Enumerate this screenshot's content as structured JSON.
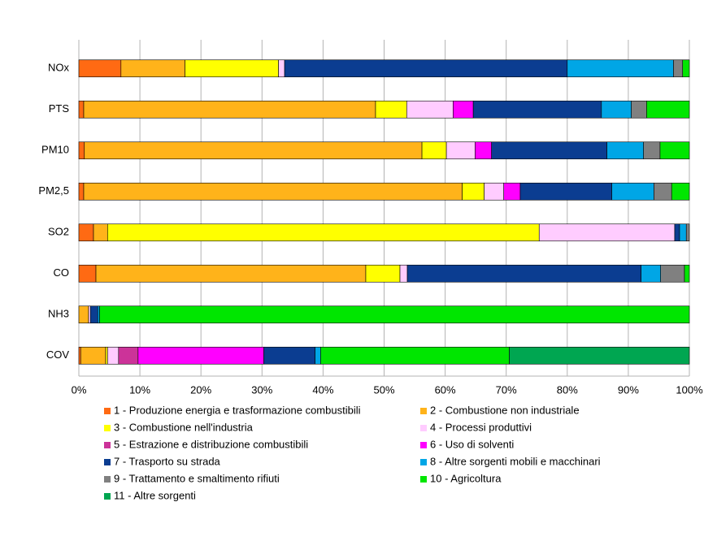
{
  "chart_data": {
    "type": "stacked-bar-horizontal",
    "categories": [
      "NOx",
      "PTS",
      "PM10",
      "PM2,5",
      "SO2",
      "CO",
      "NH3",
      "COV"
    ],
    "xlim": [
      0,
      100
    ],
    "xticks": [
      {
        "value": 0,
        "label": "0%"
      },
      {
        "value": 10,
        "label": "10%"
      },
      {
        "value": 20,
        "label": "20%"
      },
      {
        "value": 30,
        "label": "30%"
      },
      {
        "value": 40,
        "label": "40%"
      },
      {
        "value": 50,
        "label": "50%"
      },
      {
        "value": 60,
        "label": "60%"
      },
      {
        "value": 70,
        "label": "70%"
      },
      {
        "value": 80,
        "label": "80%"
      },
      {
        "value": 90,
        "label": "90%"
      },
      {
        "value": 100,
        "label": "100%"
      }
    ],
    "grid": true,
    "legend": "bottom",
    "series": [
      {
        "name": "1 - Produzione energia e trasformazione combustibili",
        "color": "#ff6a13",
        "values": [
          6.9,
          0.8,
          0.9,
          0.8,
          2.4,
          2.8,
          0,
          0.3
        ]
      },
      {
        "name": "2 - Combustione non industriale",
        "color": "#ffb31a",
        "values": [
          10.5,
          47.8,
          55.3,
          62.0,
          2.3,
          44.2,
          1.6,
          4.1
        ]
      },
      {
        "name": "3 - Combustione nell'industria",
        "color": "#ffff00",
        "values": [
          15.3,
          5.1,
          4.0,
          3.6,
          70.7,
          5.6,
          0,
          0.3
        ]
      },
      {
        "name": "4 - Processi produttivi",
        "color": "#ffccff",
        "values": [
          1.0,
          7.6,
          4.7,
          3.2,
          22.2,
          1.2,
          0.3,
          1.8
        ]
      },
      {
        "name": "5 - Estrazione e distribuzione combustibili",
        "color": "#cc3399",
        "values": [
          0,
          0,
          0,
          0,
          0,
          0,
          0,
          3.2
        ]
      },
      {
        "name": "6 - Uso di solventi",
        "color": "#ff00ff",
        "values": [
          0,
          3.3,
          2.7,
          2.7,
          0,
          0,
          0,
          20.6
        ]
      },
      {
        "name": "7 - Trasporto su strada",
        "color": "#0b3d91",
        "values": [
          46.3,
          21.0,
          18.9,
          15.0,
          0.8,
          38.3,
          1.2,
          8.4
        ]
      },
      {
        "name": "8 - Altre sorgenti mobili e macchinari",
        "color": "#00a6e6",
        "values": [
          17.4,
          4.9,
          6.0,
          6.9,
          1.1,
          3.2,
          0.3,
          0.9
        ]
      },
      {
        "name": "9 - Trattamento e smaltimento rifiuti",
        "color": "#808080",
        "values": [
          1.5,
          2.5,
          2.7,
          2.9,
          0.5,
          3.9,
          0,
          0
        ]
      },
      {
        "name": "10 - Agricoltura",
        "color": "#00e600",
        "values": [
          1.1,
          7.0,
          4.8,
          2.9,
          0,
          0.8,
          96.6,
          30.9
        ]
      },
      {
        "name": "11 - Altre sorgenti",
        "color": "#00a651",
        "values": [
          0,
          0,
          0,
          0,
          0,
          0,
          0,
          29.5
        ]
      }
    ]
  }
}
